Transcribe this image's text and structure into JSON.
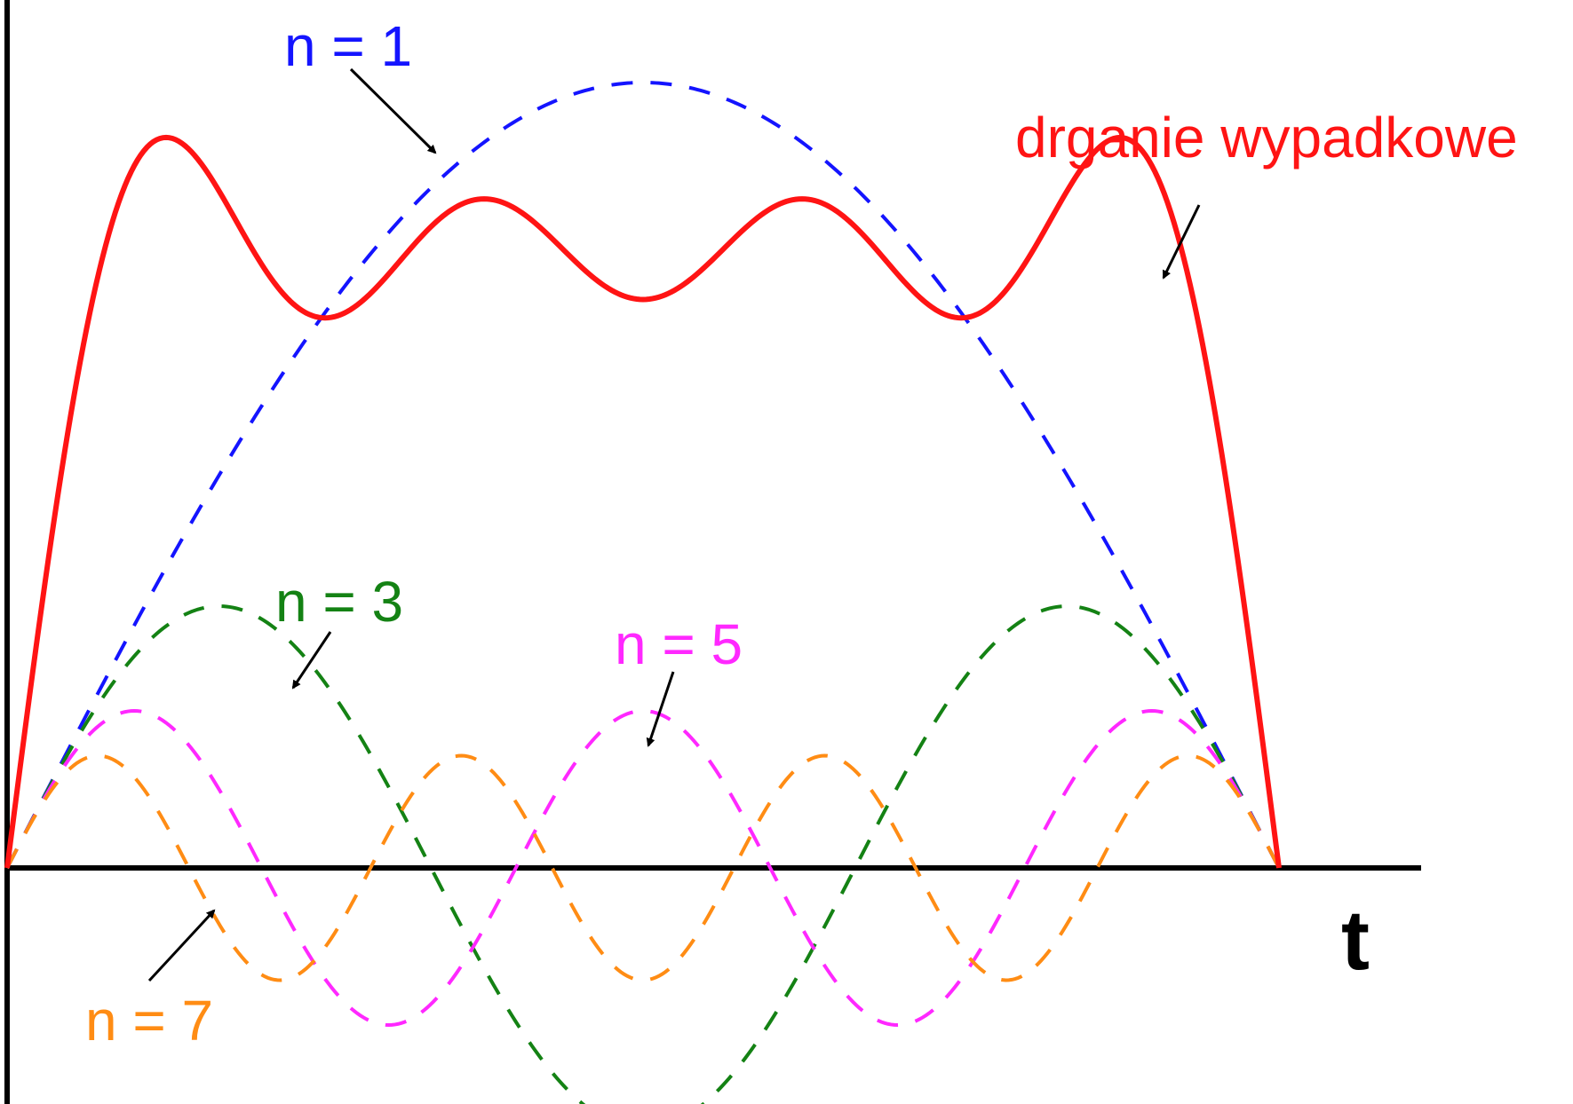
{
  "chart_data": {
    "type": "line",
    "xlabel": "t",
    "x_range": [
      0,
      1
    ],
    "y_range": [
      -0.25,
      1.0
    ],
    "grid": false,
    "series": [
      {
        "name": "n = 1",
        "harmonic": 1,
        "amplitude": 1.0,
        "style": "dashed",
        "color": "#1414ff"
      },
      {
        "name": "n = 3",
        "harmonic": 3,
        "amplitude": 0.3333,
        "style": "dashed",
        "color": "#148214"
      },
      {
        "name": "n = 5",
        "harmonic": 5,
        "amplitude": 0.2,
        "style": "dashed",
        "color": "#ff28ff"
      },
      {
        "name": "n = 7",
        "harmonic": 7,
        "amplitude": 0.1429,
        "style": "dashed",
        "color": "#ff8c14"
      },
      {
        "name": "drganie wypadkowe",
        "style": "solid",
        "color": "#ff1414",
        "sum_of": [
          1,
          3,
          5,
          7
        ]
      }
    ]
  },
  "labels": {
    "n1": "n = 1",
    "n3": "n = 3",
    "n5": "n = 5",
    "n7": "n = 7",
    "sum": "drganie wypadkowe",
    "t": "t"
  },
  "colors": {
    "n1": "#1414ff",
    "n3": "#148214",
    "n5": "#ff28ff",
    "n7": "#ff8c14",
    "sum": "#ff1414",
    "axis": "#000000"
  }
}
